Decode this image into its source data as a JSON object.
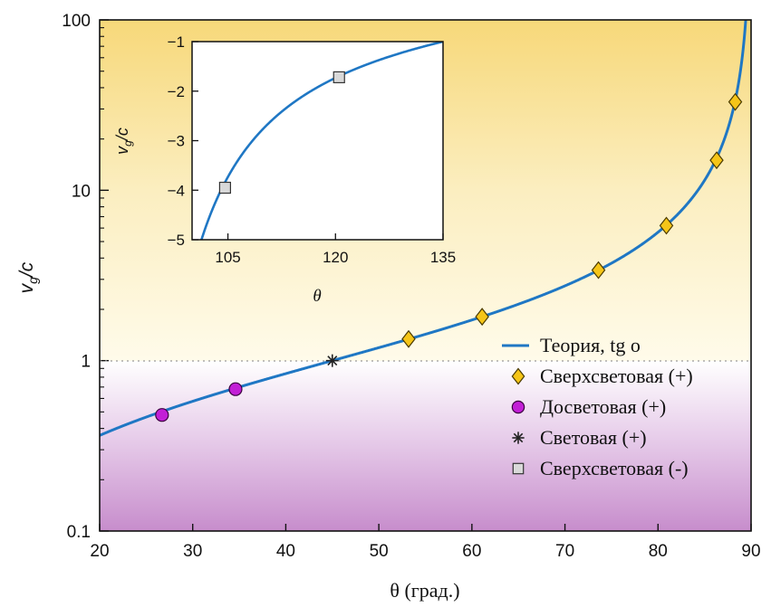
{
  "chart_data": [
    {
      "type": "line",
      "xlabel": "θ (град.)",
      "ylabel": "vg/c",
      "xlim": [
        20,
        90
      ],
      "ylim": [
        0.1,
        100
      ],
      "yscale": "log",
      "x_ticks": [
        "20",
        "30",
        "40",
        "50",
        "60",
        "70",
        "80",
        "90"
      ],
      "y_ticks": [
        "0.1",
        "1",
        "10",
        "100"
      ],
      "reference_line": {
        "y": 1,
        "style": "dotted"
      },
      "background": {
        "above_1": "yellow gradient",
        "below_1": "purple gradient"
      },
      "colors": {
        "theory": "#1f77c4",
        "superluminal": "#f5c518",
        "subluminal": "#c21fd6",
        "luminal": "#222222",
        "negative": "#d9d9d9"
      },
      "legend_position": "lower-right",
      "series": [
        {
          "name": "Теория, tg o",
          "kind": "curve",
          "function": "tan(theta)"
        },
        {
          "name": "Сверхсветовая (+)",
          "marker": "diamond",
          "points": [
            {
              "x": 53.2,
              "y": 1.34
            },
            {
              "x": 61.1,
              "y": 1.81
            },
            {
              "x": 73.6,
              "y": 3.4
            },
            {
              "x": 80.9,
              "y": 6.2
            },
            {
              "x": 86.3,
              "y": 15.0
            },
            {
              "x": 88.3,
              "y": 33.0
            }
          ]
        },
        {
          "name": "Досветовая (+)",
          "marker": "circle",
          "points": [
            {
              "x": 26.7,
              "y": 0.48
            },
            {
              "x": 34.6,
              "y": 0.68
            }
          ]
        },
        {
          "name": "Световая (+)",
          "marker": "asterisk",
          "points": [
            {
              "x": 45.0,
              "y": 1.0
            }
          ]
        },
        {
          "name": "Сверхсветовая (-)",
          "marker": "square",
          "points": []
        }
      ],
      "legend": [
        "Теория, tg o",
        "Сверхсветовая (+)",
        "Досветовая (+)",
        "Световая (+)",
        "Сверхсветовая (-)"
      ]
    },
    {
      "type": "line",
      "inset": true,
      "xlabel": "θ",
      "ylabel": "vg/c",
      "xlim": [
        100,
        135
      ],
      "ylim": [
        -5,
        -1
      ],
      "x_ticks": [
        "105",
        "120",
        "135"
      ],
      "y_ticks": [
        "−1",
        "−2",
        "−3",
        "−4",
        "−5"
      ],
      "series": [
        {
          "name": "",
          "kind": "curve",
          "function": "tan(theta)"
        },
        {
          "name": "Сверхсветовая (-)",
          "marker": "square",
          "points": [
            {
              "x": 104.6,
              "y": -3.95
            },
            {
              "x": 120.5,
              "y": -1.72
            }
          ]
        }
      ]
    }
  ]
}
